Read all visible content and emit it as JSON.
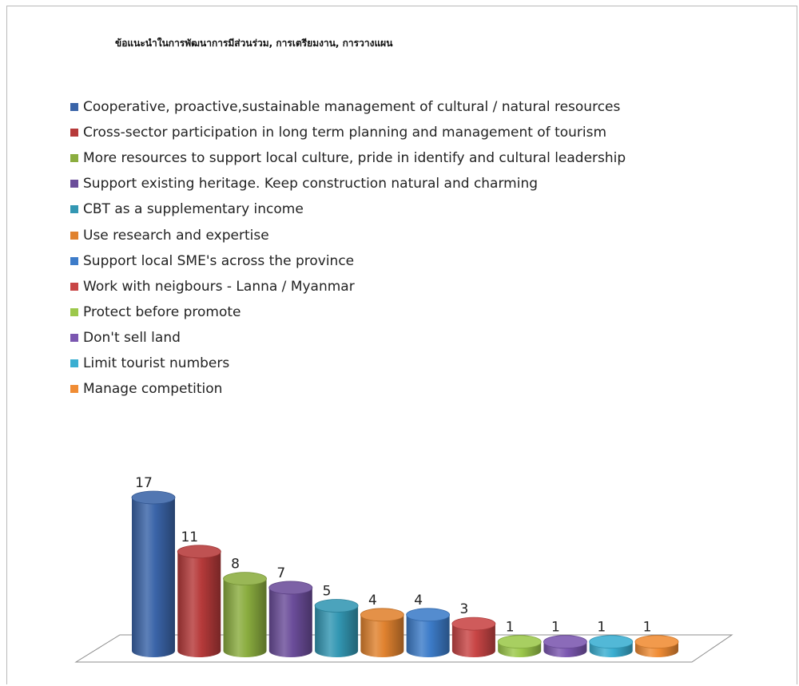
{
  "chart_data": {
    "type": "bar",
    "title": "ข้อแนะนำในการพัฒนาการมีส่วนร่วม, การเตรียมงาน, การวางแผน",
    "categories": [
      "Cooperative, proactive,sustainable management of cultural / natural resources",
      "Cross-sector participation in long term planning and management of tourism",
      "More resources to support local culture, pride in identify and cultural leadership",
      "Support existing heritage. Keep construction natural and charming",
      "CBT as a supplementary income",
      "Use research and expertise",
      "Support local SME's across the province",
      "Work with neigbours - Lanna / Myanmar",
      "Protect before promote",
      "Don't sell land",
      "Limit tourist numbers",
      "Manage competition"
    ],
    "values": [
      17,
      11,
      8,
      7,
      5,
      4,
      4,
      3,
      1,
      1,
      1,
      1
    ],
    "colors": [
      "#3a64a8",
      "#b63a3a",
      "#8bad3f",
      "#6b4d9a",
      "#3397b3",
      "#e0822f",
      "#3d7cc9",
      "#c84545",
      "#9cc84b",
      "#7b57b0",
      "#3aaed1",
      "#f08c34"
    ],
    "bar_style": "3d-cylinder",
    "data_labels": true,
    "legend_position": "top-left",
    "grid": false,
    "ylim": [
      0,
      17
    ]
  }
}
